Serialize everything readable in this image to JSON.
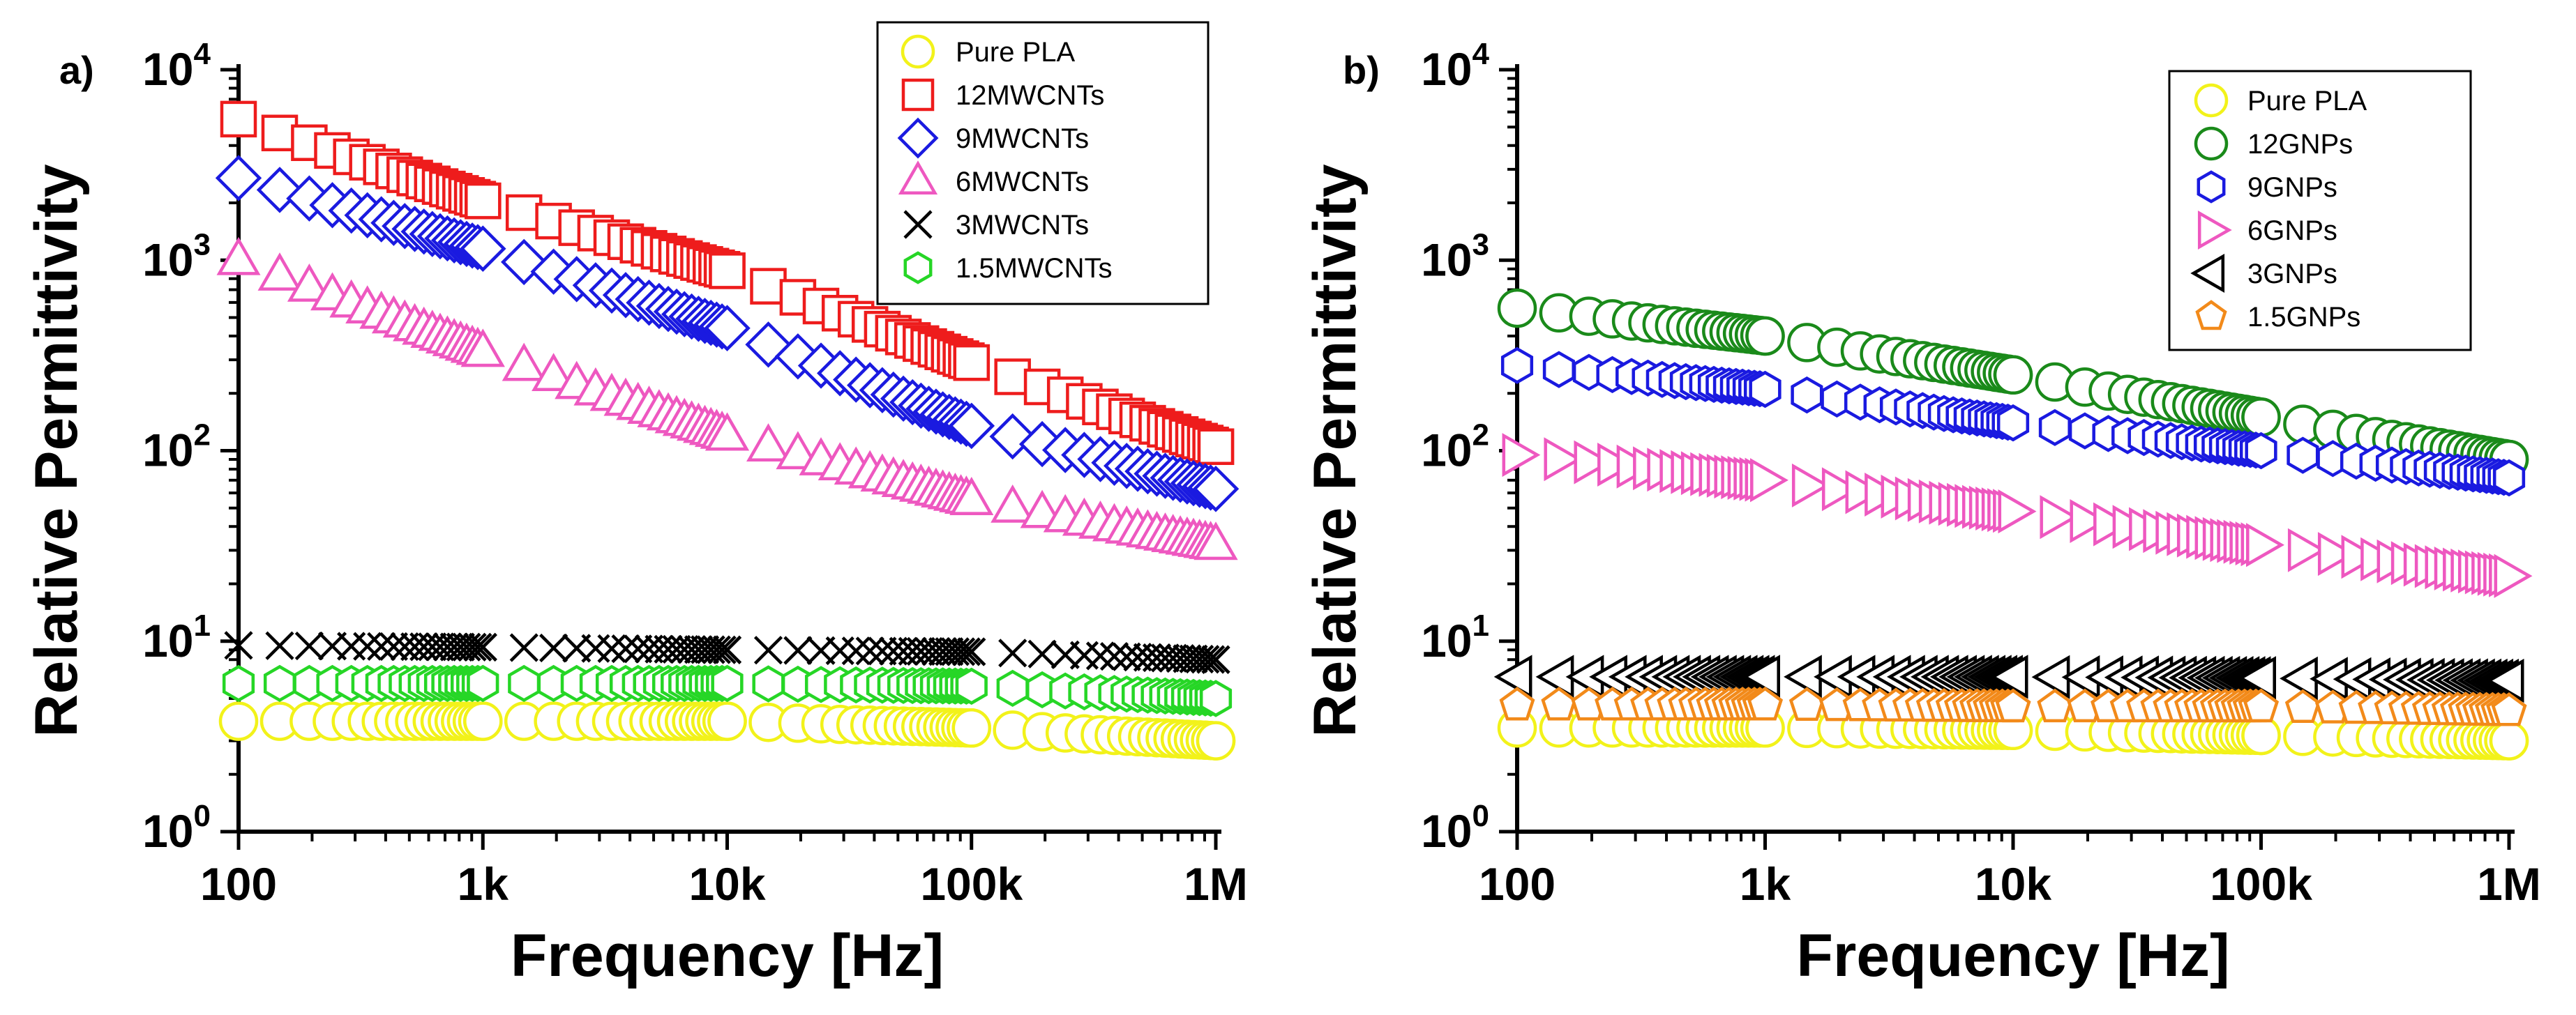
{
  "chart_data": [
    {
      "panel_label": "a)",
      "type": "scatter",
      "xscale": "log",
      "yscale": "log",
      "xlim": [
        100,
        1000000
      ],
      "ylim": [
        1,
        10000
      ],
      "xlabel": "Frequency [Hz]",
      "ylabel": "Relative Permittivity",
      "x_ticks": [
        100,
        1000,
        10000,
        100000,
        1000000
      ],
      "x_tick_labels": [
        "100",
        "1k",
        "10k",
        "100k",
        "1M"
      ],
      "y_ticks": [
        1,
        10,
        100,
        1000,
        10000
      ],
      "y_tick_labels": [
        {
          "base": "10",
          "exp": "0"
        },
        {
          "base": "10",
          "exp": "1"
        },
        {
          "base": "10",
          "exp": "2"
        },
        {
          "base": "10",
          "exp": "3"
        },
        {
          "base": "10",
          "exp": "4"
        }
      ],
      "legend_position": "top-right",
      "series": [
        {
          "name": "Pure PLA",
          "marker": "circle",
          "color": "#f2f21a",
          "points": [
            [
              100,
              3.8
            ],
            [
              1000,
              3.8
            ],
            [
              10000,
              3.8
            ],
            [
              100000,
              3.5
            ],
            [
              1000000,
              3.0
            ]
          ]
        },
        {
          "name": "12MWCNTs",
          "marker": "square",
          "color": "#ee1c1c",
          "points": [
            [
              100,
              5500
            ],
            [
              1000,
              2050
            ],
            [
              10000,
              880
            ],
            [
              100000,
              290
            ],
            [
              1000000,
              105
            ]
          ]
        },
        {
          "name": "9MWCNTs",
          "marker": "diamond",
          "color": "#1a1ae0",
          "points": [
            [
              100,
              2700
            ],
            [
              1000,
              1150
            ],
            [
              10000,
              440
            ],
            [
              100000,
              135
            ],
            [
              1000000,
              63
            ]
          ]
        },
        {
          "name": "6MWCNTs",
          "marker": "triangle-up",
          "color": "#ee58c0",
          "points": [
            [
              100,
              1000
            ],
            [
              1000,
              330
            ],
            [
              10000,
              120
            ],
            [
              100000,
              55
            ],
            [
              1000000,
              32
            ]
          ]
        },
        {
          "name": "3MWCNTs",
          "marker": "x",
          "color": "#000000",
          "points": [
            [
              100,
              9.5
            ],
            [
              1000,
              9.3
            ],
            [
              10000,
              9.0
            ],
            [
              100000,
              8.8
            ],
            [
              1000000,
              8.0
            ]
          ]
        },
        {
          "name": "1.5MWCNTs",
          "marker": "hexagon",
          "color": "#26d626",
          "points": [
            [
              100,
              6.0
            ],
            [
              1000,
              6.0
            ],
            [
              10000,
              6.0
            ],
            [
              100000,
              5.8
            ],
            [
              1000000,
              5.0
            ]
          ]
        }
      ]
    },
    {
      "panel_label": "b)",
      "type": "scatter",
      "xscale": "log",
      "yscale": "log",
      "xlim": [
        100,
        1000000
      ],
      "ylim": [
        1,
        10000
      ],
      "xlabel": "Frequency [Hz]",
      "ylabel": "Relative Permittivity",
      "x_ticks": [
        100,
        1000,
        10000,
        100000,
        1000000
      ],
      "x_tick_labels": [
        "100",
        "1k",
        "10k",
        "100k",
        "1M"
      ],
      "y_ticks": [
        1,
        10,
        100,
        1000,
        10000
      ],
      "y_tick_labels": [
        {
          "base": "10",
          "exp": "0"
        },
        {
          "base": "10",
          "exp": "1"
        },
        {
          "base": "10",
          "exp": "2"
        },
        {
          "base": "10",
          "exp": "3"
        },
        {
          "base": "10",
          "exp": "4"
        }
      ],
      "legend_position": "top-right",
      "series": [
        {
          "name": "Pure PLA",
          "marker": "circle",
          "color": "#f2f21a",
          "points": [
            [
              100,
              3.5
            ],
            [
              1000,
              3.5
            ],
            [
              10000,
              3.4
            ],
            [
              100000,
              3.2
            ],
            [
              1000000,
              3.0
            ]
          ]
        },
        {
          "name": "12GNPs",
          "marker": "circle",
          "color": "#1a8a1a",
          "points": [
            [
              100,
              560
            ],
            [
              1000,
              400
            ],
            [
              10000,
              250
            ],
            [
              100000,
              150
            ],
            [
              1000000,
              90
            ]
          ]
        },
        {
          "name": "9GNPs",
          "marker": "hexagon",
          "color": "#1a1ae0",
          "points": [
            [
              100,
              280
            ],
            [
              1000,
              210
            ],
            [
              10000,
              140
            ],
            [
              100000,
              100
            ],
            [
              1000000,
              72
            ]
          ]
        },
        {
          "name": "6GNPs",
          "marker": "triangle-right",
          "color": "#ee58c0",
          "points": [
            [
              100,
              95
            ],
            [
              1000,
              70
            ],
            [
              10000,
              48
            ],
            [
              100000,
              32
            ],
            [
              1000000,
              22
            ]
          ]
        },
        {
          "name": "3GNPs",
          "marker": "triangle-left",
          "color": "#000000",
          "points": [
            [
              100,
              6.5
            ],
            [
              1000,
              6.5
            ],
            [
              10000,
              6.5
            ],
            [
              100000,
              6.4
            ],
            [
              1000000,
              6.2
            ]
          ]
        },
        {
          "name": "1.5GNPs",
          "marker": "pentagon",
          "color": "#f28a1a",
          "points": [
            [
              100,
              4.6
            ],
            [
              1000,
              4.6
            ],
            [
              10000,
              4.5
            ],
            [
              100000,
              4.5
            ],
            [
              1000000,
              4.3
            ]
          ]
        }
      ]
    }
  ]
}
